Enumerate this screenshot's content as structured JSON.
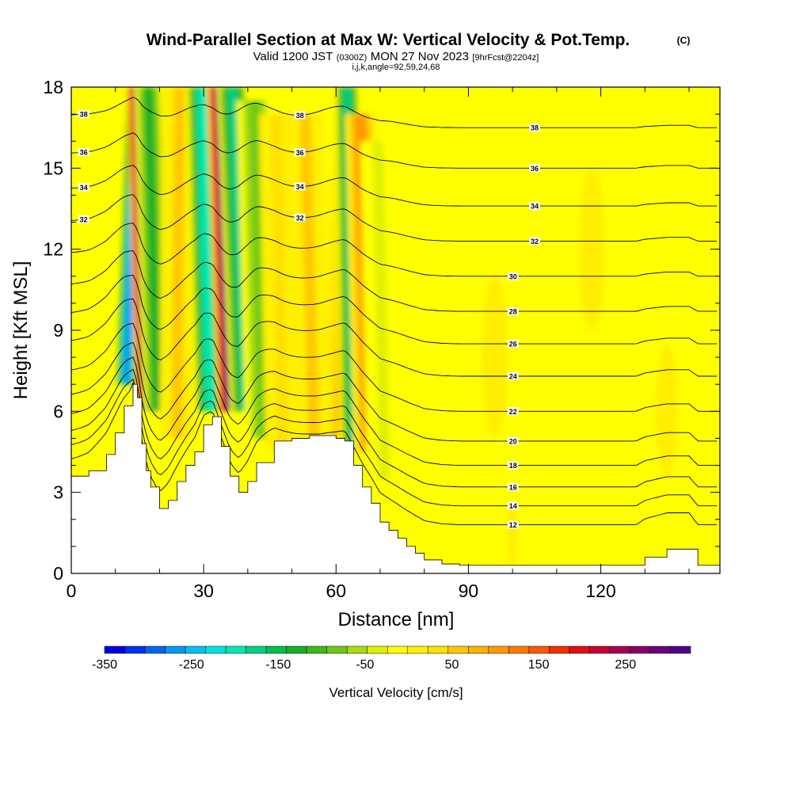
{
  "header": {
    "title": "Wind-Parallel Section at Max W: Vertical Velocity & Pot.Temp.",
    "copyright": "(C)",
    "valid_pre": "Valid 1200 JST",
    "valid_utc": "(0300Z)",
    "valid_post": "MON 27 Nov 2023",
    "forecast": "[9hrFcst@2204z]",
    "indices": "i,j,k,angle=92,59,24,68"
  },
  "chart_data": {
    "type": "heatmap",
    "xlabel": "Distance [nm]",
    "ylabel": "Height [Kft MSL]",
    "xlim": [
      0,
      147
    ],
    "ylim": [
      0,
      18
    ],
    "x_ticks": [
      0,
      30,
      60,
      90,
      120
    ],
    "y_ticks": [
      0,
      3,
      6,
      9,
      12,
      15,
      18
    ],
    "x_tick_labels": [
      "0",
      "30",
      "60",
      "90",
      "120"
    ],
    "y_tick_labels": [
      "0",
      "3",
      "6",
      "9",
      "12",
      "15",
      "18"
    ],
    "colorbar": {
      "label": "Vertical Velocity [cm/s]",
      "range": [
        -350,
        325
      ],
      "tick_values": [
        -350,
        -250,
        -150,
        -50,
        50,
        150,
        250
      ],
      "tick_labels": [
        "-350",
        "-250",
        "-150",
        "-50",
        "50",
        "150",
        "250"
      ],
      "colors": [
        "#0000e6",
        "#0030f0",
        "#0066f0",
        "#0099ee",
        "#00c0f0",
        "#00e0e0",
        "#00e8b0",
        "#00d080",
        "#00c050",
        "#18b028",
        "#40b818",
        "#70c818",
        "#a8dc10",
        "#e0f000",
        "#ffff00",
        "#fff000",
        "#ffe000",
        "#ffc800",
        "#ffb000",
        "#ff9800",
        "#ff7800",
        "#ff5800",
        "#f03000",
        "#e01010",
        "#c80030",
        "#a80058",
        "#880068",
        "#6a0080",
        "#500090"
      ]
    },
    "terrain_profile": {
      "x": [
        0,
        4,
        8,
        10,
        12,
        14,
        15,
        16,
        17,
        18,
        20,
        22,
        24,
        26,
        28,
        30,
        32,
        34,
        36,
        38,
        40,
        42,
        46,
        50,
        54,
        58,
        60,
        62,
        64,
        66,
        68,
        70,
        72,
        74,
        76,
        78,
        80,
        84,
        88,
        92,
        96,
        100,
        110,
        120,
        128,
        130,
        135,
        140,
        142,
        147
      ],
      "y": [
        3.6,
        3.8,
        4.4,
        5.2,
        6.2,
        7.0,
        6.5,
        4.8,
        3.8,
        3.2,
        2.4,
        2.7,
        3.4,
        4.0,
        4.5,
        5.5,
        5.8,
        4.7,
        3.6,
        3.0,
        3.4,
        4.1,
        4.9,
        5.0,
        5.1,
        5.1,
        5.0,
        4.9,
        4.0,
        3.2,
        2.6,
        1.9,
        1.6,
        1.3,
        1.0,
        0.75,
        0.5,
        0.35,
        0.3,
        0.3,
        0.3,
        0.3,
        0.3,
        0.3,
        0.3,
        0.6,
        0.9,
        0.9,
        0.3,
        0.3
      ]
    },
    "velocity_features": [
      {
        "x": 12.5,
        "base": 7.0,
        "top": 18,
        "lean": 2.5,
        "width": 1.6,
        "w": -260
      },
      {
        "x": 17.0,
        "base": 6.0,
        "top": 18,
        "lean": -2.0,
        "width": 1.5,
        "w": 300
      },
      {
        "x": 19.5,
        "base": 6.0,
        "top": 18,
        "lean": -2.0,
        "width": 2.0,
        "w": -120
      },
      {
        "x": 24.0,
        "base": 5.0,
        "top": 18,
        "lean": 0.5,
        "width": 2.5,
        "w": 55
      },
      {
        "x": 31.5,
        "base": 6.0,
        "top": 18,
        "lean": -2.0,
        "width": 2.2,
        "w": -190
      },
      {
        "x": 36.0,
        "base": 6.0,
        "top": 18,
        "lean": -2.5,
        "width": 1.8,
        "w": 280
      },
      {
        "x": 39.5,
        "base": 6.0,
        "top": 18,
        "lean": -3.0,
        "width": 2.2,
        "w": -170
      },
      {
        "x": 43.5,
        "base": 5.0,
        "top": 17.5,
        "lean": -2.0,
        "width": 2.5,
        "w": -90
      },
      {
        "x": 48.0,
        "base": 4.5,
        "top": 17.0,
        "lean": -1.5,
        "width": 2.5,
        "w": 45
      },
      {
        "x": 55.0,
        "base": 5.0,
        "top": 17.0,
        "lean": -2.0,
        "width": 2.5,
        "w": 55
      },
      {
        "x": 60.5,
        "base": 5.0,
        "top": 18,
        "lean": 1.5,
        "width": 1.8,
        "w": 60
      },
      {
        "x": 64.0,
        "base": 4.5,
        "top": 18,
        "lean": -1.5,
        "width": 1.8,
        "w": -170
      },
      {
        "x": 67.5,
        "base": 4.5,
        "top": 17.0,
        "lean": -2.0,
        "width": 2.2,
        "w": 110
      },
      {
        "x": 71.0,
        "base": 3.5,
        "top": 16.0,
        "lean": -1.5,
        "width": 2.5,
        "w": -45
      }
    ],
    "theta_contours": {
      "levels": [
        12,
        14,
        16,
        18,
        20,
        22,
        24,
        26,
        28,
        30,
        32,
        34,
        36,
        38
      ],
      "labeled_levels": [
        "12",
        "14",
        "16",
        "18",
        "20",
        "22",
        "24",
        "26",
        "28",
        "30",
        "32",
        "34",
        "36",
        "38"
      ],
      "far_field_height_kft": [
        1.8,
        2.5,
        3.2,
        4.0,
        4.9,
        6.0,
        7.3,
        8.5,
        9.7,
        11.0,
        12.3,
        13.6,
        15.0,
        16.5
      ]
    }
  }
}
